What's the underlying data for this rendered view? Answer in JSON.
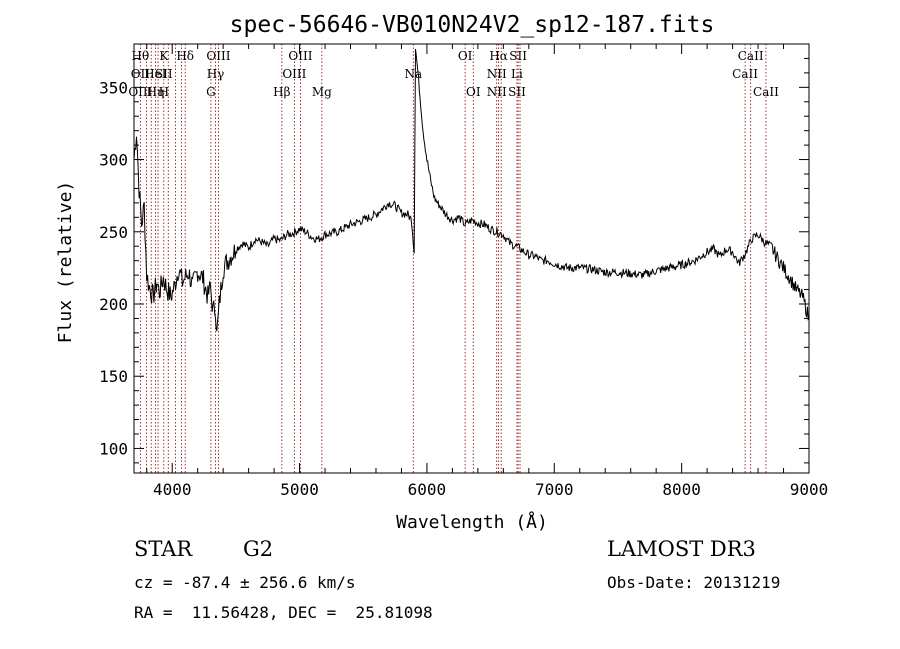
{
  "chart_data": {
    "type": "line",
    "title": "spec-56646-VB010N24V2_sp12-187.fits",
    "xlabel": "Wavelength (Å)",
    "ylabel": "Flux (relative)",
    "xlim": [
      3700,
      9000
    ],
    "ylim": [
      83,
      380
    ],
    "xticks": [
      4000,
      5000,
      6000,
      7000,
      8000,
      9000
    ],
    "yticks": [
      100,
      150,
      200,
      250,
      300,
      350
    ],
    "grid": false,
    "line_color": "#000000",
    "marker_color": "#8b0000",
    "series": [
      {
        "name": "flux",
        "points": [
          [
            3700,
            300
          ],
          [
            3720,
            320
          ],
          [
            3740,
            280
          ],
          [
            3760,
            255
          ],
          [
            3780,
            268
          ],
          [
            3800,
            220
          ],
          [
            3820,
            212
          ],
          [
            3850,
            205
          ],
          [
            3880,
            215
          ],
          [
            3900,
            208
          ],
          [
            3930,
            218
          ],
          [
            3960,
            210
          ],
          [
            3990,
            205
          ],
          [
            4020,
            213
          ],
          [
            4050,
            225
          ],
          [
            4080,
            215
          ],
          [
            4100,
            218
          ],
          [
            4130,
            222
          ],
          [
            4160,
            212
          ],
          [
            4200,
            223
          ],
          [
            4240,
            218
          ],
          [
            4280,
            205
          ],
          [
            4300,
            212
          ],
          [
            4320,
            195
          ],
          [
            4340,
            198
          ],
          [
            4350,
            178
          ],
          [
            4370,
            200
          ],
          [
            4400,
            225
          ],
          [
            4450,
            232
          ],
          [
            4500,
            238
          ],
          [
            4550,
            242
          ],
          [
            4600,
            239
          ],
          [
            4650,
            245
          ],
          [
            4700,
            243
          ],
          [
            4750,
            240
          ],
          [
            4800,
            245
          ],
          [
            4850,
            244
          ],
          [
            4900,
            248
          ],
          [
            4950,
            249
          ],
          [
            5000,
            252
          ],
          [
            5050,
            250
          ],
          [
            5100,
            246
          ],
          [
            5150,
            245
          ],
          [
            5200,
            248
          ],
          [
            5300,
            250
          ],
          [
            5400,
            255
          ],
          [
            5500,
            258
          ],
          [
            5600,
            262
          ],
          [
            5700,
            270
          ],
          [
            5750,
            268
          ],
          [
            5800,
            263
          ],
          [
            5850,
            262
          ],
          [
            5880,
            258
          ],
          [
            5900,
            236
          ],
          [
            5910,
            378
          ],
          [
            5940,
            350
          ],
          [
            5970,
            320
          ],
          [
            6000,
            300
          ],
          [
            6030,
            285
          ],
          [
            6060,
            273
          ],
          [
            6100,
            268
          ],
          [
            6150,
            262
          ],
          [
            6200,
            258
          ],
          [
            6250,
            260
          ],
          [
            6300,
            255
          ],
          [
            6350,
            258
          ],
          [
            6400,
            256
          ],
          [
            6450,
            255
          ],
          [
            6500,
            252
          ],
          [
            6550,
            250
          ],
          [
            6600,
            248
          ],
          [
            6650,
            242
          ],
          [
            6700,
            240
          ],
          [
            6750,
            237
          ],
          [
            6800,
            234
          ],
          [
            6850,
            233
          ],
          [
            6900,
            230
          ],
          [
            6950,
            230
          ],
          [
            7000,
            228
          ],
          [
            7100,
            225
          ],
          [
            7200,
            225
          ],
          [
            7300,
            224
          ],
          [
            7400,
            222
          ],
          [
            7500,
            222
          ],
          [
            7600,
            221
          ],
          [
            7700,
            220
          ],
          [
            7800,
            223
          ],
          [
            7900,
            225
          ],
          [
            8000,
            227
          ],
          [
            8100,
            230
          ],
          [
            8200,
            236
          ],
          [
            8250,
            238
          ],
          [
            8300,
            233
          ],
          [
            8350,
            238
          ],
          [
            8400,
            236
          ],
          [
            8450,
            228
          ],
          [
            8500,
            235
          ],
          [
            8550,
            245
          ],
          [
            8600,
            248
          ],
          [
            8650,
            243
          ],
          [
            8700,
            240
          ],
          [
            8750,
            232
          ],
          [
            8800,
            225
          ],
          [
            8850,
            218
          ],
          [
            8900,
            210
          ],
          [
            8950,
            205
          ],
          [
            9000,
            190
          ]
        ]
      }
    ],
    "line_markers": [
      {
        "wavelength": 3750,
        "labels": [
          "Hθ",
          "OII",
          "OIII"
        ]
      },
      {
        "wavelength": 3798,
        "labels": [
          "",
          "",
          ""
        ]
      },
      {
        "wavelength": 3835,
        "labels": [
          "",
          "",
          ""
        ]
      },
      {
        "wavelength": 3868,
        "labels": [
          "",
          "HeI",
          "Hη"
        ]
      },
      {
        "wavelength": 3889,
        "labels": [
          "",
          "",
          ""
        ]
      },
      {
        "wavelength": 3934,
        "labels": [
          "K",
          "SII",
          "H"
        ]
      },
      {
        "wavelength": 3969,
        "labels": [
          "",
          "",
          ""
        ]
      },
      {
        "wavelength": 4026,
        "labels": [
          "",
          "",
          ""
        ]
      },
      {
        "wavelength": 4072,
        "labels": [
          "",
          "",
          ""
        ]
      },
      {
        "wavelength": 4102,
        "labels": [
          "Hδ",
          "",
          ""
        ]
      },
      {
        "wavelength": 4304,
        "labels": [
          "",
          "",
          "G"
        ]
      },
      {
        "wavelength": 4340,
        "labels": [
          "",
          "Hγ",
          ""
        ]
      },
      {
        "wavelength": 4363,
        "labels": [
          "OIII",
          "",
          ""
        ]
      },
      {
        "wavelength": 4861,
        "labels": [
          "",
          "",
          "Hβ"
        ]
      },
      {
        "wavelength": 4959,
        "labels": [
          "",
          "OIII",
          ""
        ]
      },
      {
        "wavelength": 5007,
        "labels": [
          "OIII",
          "",
          ""
        ]
      },
      {
        "wavelength": 5175,
        "labels": [
          "",
          "",
          "Mg"
        ]
      },
      {
        "wavelength": 5893,
        "labels": [
          "",
          "Na",
          ""
        ]
      },
      {
        "wavelength": 6300,
        "labels": [
          "OI",
          "",
          ""
        ]
      },
      {
        "wavelength": 6364,
        "labels": [
          "",
          "",
          "OI"
        ]
      },
      {
        "wavelength": 6548,
        "labels": [
          "",
          "NII",
          "NII"
        ]
      },
      {
        "wavelength": 6563,
        "labels": [
          "Hα",
          "",
          ""
        ]
      },
      {
        "wavelength": 6583,
        "labels": [
          "",
          "",
          ""
        ]
      },
      {
        "wavelength": 6707,
        "labels": [
          "",
          "Li",
          "SII"
        ]
      },
      {
        "wavelength": 6716,
        "labels": [
          "SII",
          "",
          ""
        ]
      },
      {
        "wavelength": 6731,
        "labels": [
          "",
          "",
          ""
        ]
      },
      {
        "wavelength": 8498,
        "labels": [
          "",
          "CaII",
          ""
        ]
      },
      {
        "wavelength": 8542,
        "labels": [
          "CaII",
          "",
          ""
        ]
      },
      {
        "wavelength": 8662,
        "labels": [
          "",
          "",
          "CaII"
        ]
      }
    ]
  },
  "info": {
    "object_class": "STAR",
    "subclass": "G2",
    "survey": "LAMOST DR3",
    "redshift_line": "cz = -87.4 ± 256.6 km/s",
    "obs_date_line": "Obs-Date: 20131219",
    "coords_line": "RA =  11.56428, DEC =  25.81098"
  }
}
